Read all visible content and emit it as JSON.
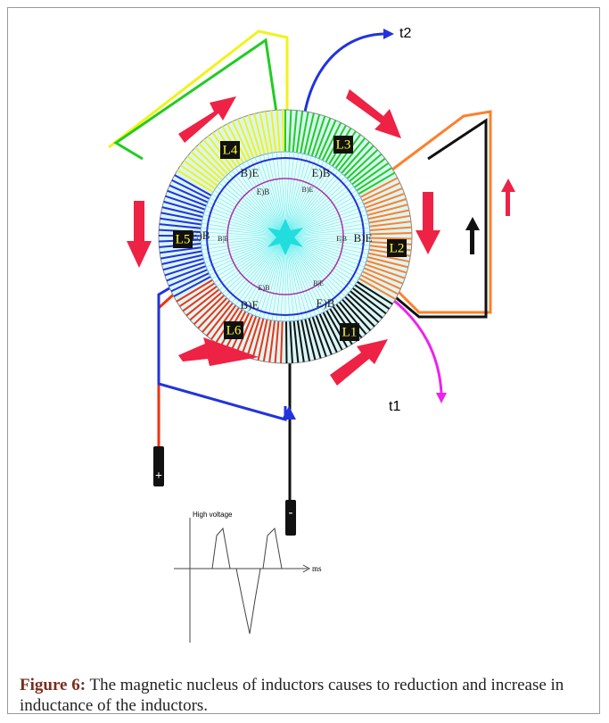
{
  "figure": {
    "coils": [
      {
        "label": "L1",
        "color": "#111111"
      },
      {
        "label": "L2",
        "color": "#ff7f2a"
      },
      {
        "label": "L3",
        "color": "#22cc22"
      },
      {
        "label": "L4",
        "color": "#f2f21a"
      },
      {
        "label": "L5",
        "color": "#2233dd"
      },
      {
        "label": "L6",
        "color": "#ee3311"
      }
    ],
    "terminals": [
      "t1",
      "t2"
    ],
    "ring_labels": [
      "B)E",
      "E)B",
      "E)B",
      "B)E",
      "E)B",
      "B|E",
      "E|B",
      "B)E",
      "E)B",
      "B|E",
      "B)E",
      "E)B"
    ],
    "polarity": [
      "+",
      "-"
    ],
    "graph": {
      "y_label": "High voltage",
      "x_label": "ms"
    },
    "caption": {
      "label": "Figure 6:",
      "text": "The magnetic nucleus of inductors causes to reduction and increase in inductance of the inductors."
    }
  }
}
